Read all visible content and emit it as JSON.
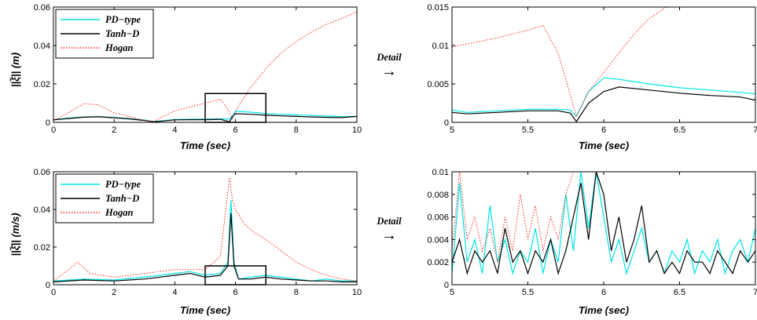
{
  "colors": {
    "pd": "#00e5e5",
    "tanh": "#000000",
    "hogan": "#ff2020",
    "axis": "#000000"
  },
  "detail": {
    "label": "Detail",
    "arrow": "→"
  },
  "chart_data": [
    {
      "id": "p1",
      "type": "line",
      "xlabel": "Time (sec)",
      "ylabel": "||ξ̃|| (m)",
      "xlim": [
        0,
        10
      ],
      "ylim": [
        0,
        0.06
      ],
      "xticks": [
        0,
        2,
        4,
        6,
        8,
        10
      ],
      "xtick_labels": [
        "0",
        "2",
        "4",
        "6",
        "8",
        "10"
      ],
      "yticks": [
        0,
        0.02,
        0.04,
        0.06
      ],
      "ytick_labels": [
        "0",
        "0.02",
        "0.04",
        "0.06"
      ],
      "legend": [
        "PD−type",
        "Tanh−D",
        "Hogan"
      ],
      "legend_position": "top-left",
      "zoom_box": {
        "x": [
          5,
          7
        ],
        "y": [
          0,
          0.015
        ]
      },
      "series": [
        {
          "name": "PD−type",
          "style": "solid",
          "x": [
            0,
            0.5,
            1,
            1.5,
            2,
            2.5,
            3,
            3.3,
            3.6,
            4,
            4.5,
            5,
            5.5,
            5.8,
            5.9,
            6,
            6.5,
            7,
            7.5,
            8,
            8.5,
            9,
            9.5,
            10
          ],
          "y": [
            0.0015,
            0.0022,
            0.0028,
            0.003,
            0.0025,
            0.002,
            0.0012,
            0.0005,
            0.0008,
            0.0015,
            0.0016,
            0.0017,
            0.0018,
            0.0017,
            0.0035,
            0.0058,
            0.0053,
            0.0046,
            0.0042,
            0.0039,
            0.0036,
            0.0033,
            0.003,
            0.0032
          ]
        },
        {
          "name": "Tanh−D",
          "style": "solid",
          "x": [
            0,
            0.5,
            1,
            1.5,
            2,
            2.5,
            3,
            3.3,
            3.6,
            4,
            4.5,
            5,
            5.5,
            5.8,
            5.9,
            6,
            6.5,
            7,
            7.5,
            8,
            8.5,
            9,
            9.5,
            10
          ],
          "y": [
            0.0013,
            0.002,
            0.0027,
            0.0029,
            0.0024,
            0.0018,
            0.001,
            0.0003,
            0.0007,
            0.0013,
            0.0014,
            0.0014,
            0.0016,
            0.0003,
            0.0028,
            0.0045,
            0.0042,
            0.0037,
            0.0034,
            0.0031,
            0.0028,
            0.0026,
            0.0025,
            0.0031
          ]
        },
        {
          "name": "Hogan",
          "style": "dotted",
          "x": [
            0,
            0.5,
            1,
            1.5,
            2,
            2.5,
            3,
            3.3,
            3.6,
            4,
            4.5,
            5,
            5.5,
            5.7,
            5.9,
            6,
            6.5,
            7,
            7.5,
            8,
            8.5,
            9,
            9.5,
            10
          ],
          "y": [
            0.001,
            0.005,
            0.0098,
            0.009,
            0.005,
            0.003,
            0.001,
            0.0005,
            0.003,
            0.006,
            0.008,
            0.01,
            0.012,
            0.008,
            0.002,
            0.006,
            0.018,
            0.028,
            0.036,
            0.042,
            0.047,
            0.051,
            0.054,
            0.0575
          ]
        }
      ]
    },
    {
      "id": "p2",
      "type": "line",
      "xlabel": "Time (sec)",
      "ylabel": "",
      "xlim": [
        5,
        7
      ],
      "ylim": [
        0,
        0.015
      ],
      "xticks": [
        5,
        5.5,
        6,
        6.5,
        7
      ],
      "xtick_labels": [
        "5",
        "5.5",
        "6",
        "6.5",
        "7"
      ],
      "yticks": [
        0,
        0.005,
        0.01,
        0.015
      ],
      "ytick_labels": [
        "0",
        "0.005",
        "0.01",
        "0.015"
      ],
      "series": [
        {
          "name": "PD−type",
          "style": "solid",
          "x": [
            5,
            5.1,
            5.2,
            5.3,
            5.4,
            5.5,
            5.6,
            5.7,
            5.78,
            5.82,
            5.9,
            6,
            6.1,
            6.3,
            6.5,
            6.7,
            6.9,
            7
          ],
          "y": [
            0.0016,
            0.0013,
            0.0014,
            0.0015,
            0.0016,
            0.0017,
            0.0017,
            0.0017,
            0.0016,
            0.0008,
            0.004,
            0.0058,
            0.0056,
            0.005,
            0.0045,
            0.0042,
            0.0039,
            0.0037
          ]
        },
        {
          "name": "Tanh−D",
          "style": "solid",
          "x": [
            5,
            5.1,
            5.2,
            5.3,
            5.4,
            5.5,
            5.6,
            5.7,
            5.78,
            5.82,
            5.9,
            6,
            6.1,
            6.3,
            6.5,
            6.7,
            6.9,
            7
          ],
          "y": [
            0.0013,
            0.0011,
            0.0012,
            0.0013,
            0.0014,
            0.0015,
            0.0015,
            0.0015,
            0.0012,
            0.0001,
            0.0025,
            0.004,
            0.0046,
            0.0042,
            0.0038,
            0.0035,
            0.0033,
            0.0029
          ]
        },
        {
          "name": "Hogan",
          "style": "dotted",
          "x": [
            5,
            5.1,
            5.2,
            5.3,
            5.4,
            5.5,
            5.6,
            5.7,
            5.82,
            5.9,
            6,
            6.1,
            6.2,
            6.3,
            6.45
          ],
          "y": [
            0.0098,
            0.0102,
            0.0106,
            0.011,
            0.0115,
            0.012,
            0.0126,
            0.009,
            0.0008,
            0.004,
            0.0065,
            0.009,
            0.0115,
            0.0135,
            0.0155
          ]
        }
      ]
    },
    {
      "id": "p3",
      "type": "line",
      "xlabel": "Time (sec)",
      "ylabel": "||ξ̃̇|| (m/s)",
      "xlim": [
        0,
        10
      ],
      "ylim": [
        0,
        0.06
      ],
      "xticks": [
        0,
        2,
        4,
        6,
        8,
        10
      ],
      "xtick_labels": [
        "0",
        "2",
        "4",
        "6",
        "8",
        "10"
      ],
      "yticks": [
        0,
        0.02,
        0.04,
        0.06
      ],
      "ytick_labels": [
        "0",
        "0.02",
        "0.04",
        "0.06"
      ],
      "legend": [
        "PD−type",
        "Tanh−D",
        "Hogan"
      ],
      "legend_position": "top-left",
      "zoom_box": {
        "x": [
          5,
          7
        ],
        "y": [
          0,
          0.01
        ]
      },
      "series": [
        {
          "name": "PD−type",
          "style": "solid",
          "x": [
            0,
            1,
            2,
            3,
            4,
            4.5,
            5,
            5.5,
            5.75,
            5.85,
            5.95,
            6.1,
            6.5,
            7,
            7.5,
            8,
            8.5,
            9,
            9.5,
            10
          ],
          "y": [
            0.002,
            0.003,
            0.0025,
            0.004,
            0.006,
            0.007,
            0.005,
            0.006,
            0.012,
            0.045,
            0.012,
            0.003,
            0.004,
            0.005,
            0.004,
            0.003,
            0.002,
            0.003,
            0.002,
            0.002
          ]
        },
        {
          "name": "Tanh−D",
          "style": "solid",
          "x": [
            0,
            1,
            2,
            3,
            4,
            4.5,
            5,
            5.5,
            5.75,
            5.85,
            5.95,
            6.1,
            6.5,
            7,
            7.5,
            8,
            8.5,
            9,
            9.5,
            10
          ],
          "y": [
            0.0015,
            0.0025,
            0.002,
            0.003,
            0.005,
            0.006,
            0.004,
            0.005,
            0.01,
            0.038,
            0.01,
            0.003,
            0.003,
            0.004,
            0.003,
            0.0025,
            0.002,
            0.002,
            0.0015,
            0.0015
          ]
        },
        {
          "name": "Hogan",
          "style": "dotted",
          "x": [
            0,
            0.5,
            0.8,
            1.2,
            2,
            3,
            4,
            5,
            5.5,
            5.8,
            5.9,
            6,
            6.3,
            6.6,
            7,
            7.5,
            8,
            8.5,
            9,
            9.5,
            10
          ],
          "y": [
            0.002,
            0.008,
            0.012,
            0.006,
            0.004,
            0.006,
            0.008,
            0.008,
            0.015,
            0.057,
            0.045,
            0.04,
            0.032,
            0.028,
            0.024,
            0.018,
            0.012,
            0.008,
            0.005,
            0.003,
            0.002
          ]
        }
      ]
    },
    {
      "id": "p4",
      "type": "line",
      "xlabel": "Time (sec)",
      "ylabel": "",
      "xlim": [
        5,
        7
      ],
      "ylim": [
        0,
        0.01
      ],
      "xticks": [
        5,
        5.5,
        6,
        6.5,
        7
      ],
      "xtick_labels": [
        "5",
        "5.5",
        "6",
        "6.5",
        "7"
      ],
      "yticks": [
        0,
        0.002,
        0.004,
        0.006,
        0.008,
        0.01
      ],
      "ytick_labels": [
        "0",
        "0.002",
        "0.004",
        "0.006",
        "0.008",
        "0.01"
      ],
      "series": [
        {
          "name": "PD−type",
          "style": "solid",
          "x": [
            5,
            5.05,
            5.1,
            5.15,
            5.2,
            5.25,
            5.3,
            5.35,
            5.4,
            5.45,
            5.5,
            5.55,
            5.6,
            5.65,
            5.7,
            5.75,
            5.8,
            5.85,
            5.9,
            5.95,
            6,
            6.05,
            6.1,
            6.15,
            6.2,
            6.25,
            6.3,
            6.35,
            6.4,
            6.45,
            6.5,
            6.55,
            6.6,
            6.65,
            6.7,
            6.75,
            6.8,
            6.85,
            6.9,
            6.95,
            7
          ],
          "y": [
            0.001,
            0.009,
            0.002,
            0.004,
            0.001,
            0.007,
            0.002,
            0.004,
            0.001,
            0.003,
            0.002,
            0.005,
            0.001,
            0.004,
            0.002,
            0.008,
            0.003,
            0.01,
            0.005,
            0.01,
            0.006,
            0.002,
            0.004,
            0.001,
            0.003,
            0.005,
            0.002,
            0.003,
            0.001,
            0.003,
            0.002,
            0.004,
            0.001,
            0.003,
            0.002,
            0.004,
            0.001,
            0.003,
            0.004,
            0.002,
            0.005
          ]
        },
        {
          "name": "Tanh−D",
          "style": "solid",
          "x": [
            5,
            5.05,
            5.1,
            5.15,
            5.2,
            5.25,
            5.3,
            5.35,
            5.4,
            5.45,
            5.5,
            5.55,
            5.6,
            5.65,
            5.7,
            5.75,
            5.8,
            5.85,
            5.9,
            5.95,
            6,
            6.05,
            6.1,
            6.15,
            6.2,
            6.25,
            6.3,
            6.35,
            6.4,
            6.45,
            6.5,
            6.55,
            6.6,
            6.65,
            6.7,
            6.75,
            6.8,
            6.85,
            6.9,
            6.95,
            7
          ],
          "y": [
            0.002,
            0.004,
            0.001,
            0.003,
            0.002,
            0.003,
            0.001,
            0.005,
            0.002,
            0.003,
            0.001,
            0.003,
            0.002,
            0.004,
            0.001,
            0.003,
            0.006,
            0.009,
            0.004,
            0.01,
            0.008,
            0.003,
            0.006,
            0.002,
            0.004,
            0.007,
            0.002,
            0.003,
            0.001,
            0.002,
            0.001,
            0.003,
            0.002,
            0.002,
            0.001,
            0.003,
            0.002,
            0.001,
            0.003,
            0.002,
            0.003
          ]
        },
        {
          "name": "Hogan",
          "style": "dotted",
          "x": [
            5,
            5.05,
            5.1,
            5.15,
            5.2,
            5.25,
            5.3,
            5.35,
            5.4,
            5.45,
            5.5,
            5.55,
            5.6,
            5.65,
            5.7,
            5.75,
            5.8
          ],
          "y": [
            0.003,
            0.01,
            0.004,
            0.006,
            0.003,
            0.005,
            0.002,
            0.006,
            0.003,
            0.008,
            0.004,
            0.007,
            0.003,
            0.006,
            0.004,
            0.008,
            0.01
          ]
        }
      ]
    }
  ]
}
